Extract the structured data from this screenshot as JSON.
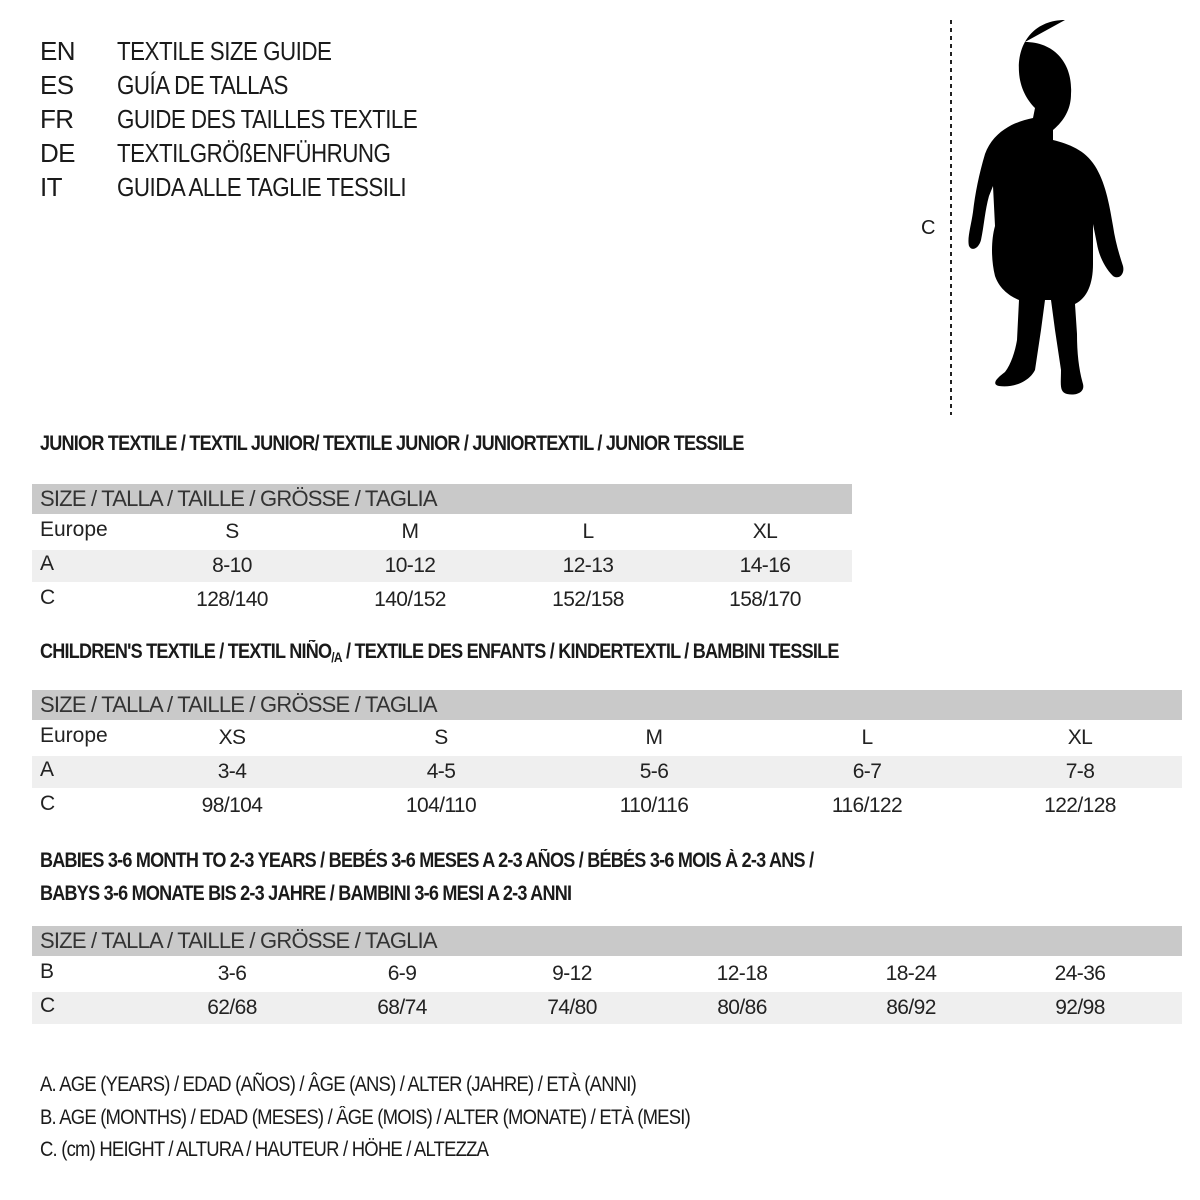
{
  "languages": [
    {
      "code": "EN",
      "title": "TEXTILE SIZE GUIDE"
    },
    {
      "code": "ES",
      "title": "GUÍA DE TALLAS"
    },
    {
      "code": "FR",
      "title": "GUIDE DES TAILLES TEXTILE"
    },
    {
      "code": "DE",
      "title": "TEXTILGRÖßENFÜHRUNG"
    },
    {
      "code": "IT",
      "title": "GUIDA ALLE TAGLIE TESSILI"
    }
  ],
  "figure": {
    "measure_label": "C"
  },
  "junior": {
    "heading": "JUNIOR TEXTILE / TEXTIL JUNIOR/ TEXTILE JUNIOR / JUNIORTEXTIL / JUNIOR TESSILE",
    "header": "SIZE / TALLA / TAILLE / GRÖSSE / TAGLIA",
    "rows": [
      {
        "label": "Europe",
        "values": [
          "S",
          "M",
          "L",
          "XL"
        ]
      },
      {
        "label": "A",
        "values": [
          "8-10",
          "10-12",
          "12-13",
          "14-16"
        ]
      },
      {
        "label": "C",
        "values": [
          "128/140",
          "140/152",
          "152/158",
          "158/170"
        ]
      }
    ]
  },
  "children": {
    "heading_a": "CHILDREN'S TEXTILE / TEXTIL NIÑO",
    "heading_sub": "/A",
    "heading_b": " / TEXTILE DES ENFANTS / KINDERTEXTIL / BAMBINI TESSILE",
    "header": "SIZE / TALLA / TAILLE / GRÖSSE / TAGLIA",
    "rows": [
      {
        "label": "Europe",
        "values": [
          "XS",
          "S",
          "M",
          "L",
          "XL"
        ]
      },
      {
        "label": "A",
        "values": [
          "3-4",
          "4-5",
          "5-6",
          "6-7",
          "7-8"
        ]
      },
      {
        "label": "C",
        "values": [
          "98/104",
          "104/110",
          "110/116",
          "116/122",
          "122/128"
        ]
      }
    ]
  },
  "babies": {
    "heading_line1": "BABIES 3-6 MONTH TO 2-3 YEARS / BEBÉS 3-6 MESES A 2-3 AÑOS / BÉBÉS 3-6 MOIS À 2-3 ANS /",
    "heading_line2": "BABYS 3-6 MONATE BIS 2-3 JAHRE / BAMBINI 3-6 MESI A 2-3 ANNI",
    "header": "SIZE / TALLA / TAILLE / GRÖSSE / TAGLIA",
    "rows": [
      {
        "label": "B",
        "values": [
          "3-6",
          "6-9",
          "9-12",
          "12-18",
          "18-24",
          "24-36"
        ]
      },
      {
        "label": "C",
        "values": [
          "62/68",
          "68/74",
          "74/80",
          "80/86",
          "86/92",
          "92/98"
        ]
      }
    ]
  },
  "legend": [
    "A. AGE (YEARS) / EDAD (AÑOS) / ÂGE (ANS) / ALTER (JAHRE) / ETÀ (ANNI)",
    "B. AGE (MONTHS) / EDAD (MESES) / ÂGE (MOIS) / ALTER (MONATE) / ETÀ (MESI)",
    "C. (cm) HEIGHT / ALTURA / HAUTEUR / HÖHE / ALTEZZA"
  ],
  "colors": {
    "header_bg": "#c9c9c9",
    "stripe_bg": "#efefef",
    "text": "#1a1a1a"
  }
}
